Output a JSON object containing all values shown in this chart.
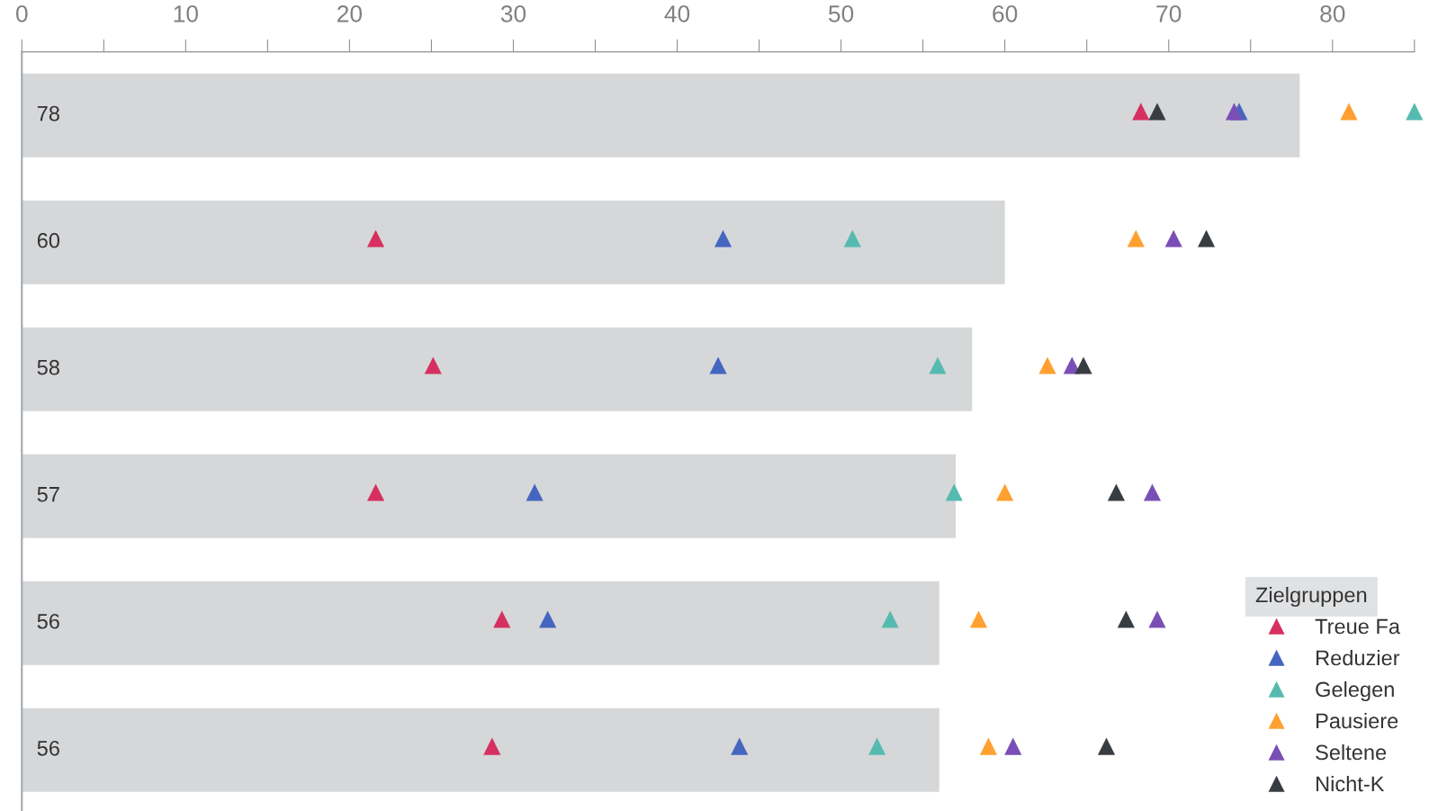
{
  "chart_data": {
    "type": "bar",
    "orientation": "horizontal",
    "categories": [
      null,
      null,
      null,
      null,
      null,
      null
    ],
    "xlim": [
      0,
      85
    ],
    "xticks": [
      0,
      {
        "value": 5,
        "label": null
      },
      10,
      {
        "value": 15,
        "label": null
      },
      20,
      {
        "value": 25,
        "label": null
      },
      30,
      {
        "value": 35,
        "label": null
      },
      40,
      {
        "value": 45,
        "label": null
      },
      50,
      {
        "value": 55,
        "label": null
      },
      60,
      {
        "value": 65,
        "label": null
      },
      70,
      {
        "value": 75,
        "label": null
      },
      80,
      {
        "value": 85,
        "label": null
      }
    ],
    "tick_labels": "x",
    "grid": false,
    "legend": "right",
    "marker": "triangle",
    "legend_title": "Zielgruppen",
    "series": [
      {
        "type": "bar",
        "color": "#d6d7d9",
        "values": [
          78,
          60,
          58,
          57,
          56,
          56
        ],
        "value_labels": [
          "78",
          "60",
          "58",
          "57",
          "56",
          "56"
        ]
      },
      {
        "type": "scatter",
        "name": "Treue Fa",
        "color": "#d63060",
        "values": [
          68.3,
          21.6,
          25.1,
          21.6,
          29.3,
          28.7
        ]
      },
      {
        "type": "scatter",
        "name": "Reduzier",
        "color": "#4466c0",
        "values": [
          74.3,
          42.8,
          42.5,
          31.3,
          32.1,
          43.8
        ]
      },
      {
        "type": "scatter",
        "name": "Gelegen",
        "color": "#55bbb0",
        "values": [
          85.0,
          50.7,
          55.9,
          56.9,
          53.0,
          52.2
        ]
      },
      {
        "type": "scatter",
        "name": "Pausiere",
        "color": "#ffa030",
        "values": [
          81.0,
          68.0,
          62.6,
          60.0,
          58.4,
          59.0
        ]
      },
      {
        "type": "scatter",
        "name": "Seltene",
        "color": "#7a4fb5",
        "values": [
          74.0,
          70.3,
          64.1,
          69.0,
          69.3,
          60.5
        ]
      },
      {
        "type": "scatter",
        "name": "Nicht-K",
        "color": "#383d42",
        "values": [
          69.3,
          72.3,
          64.8,
          66.8,
          67.4,
          66.2
        ]
      }
    ]
  }
}
